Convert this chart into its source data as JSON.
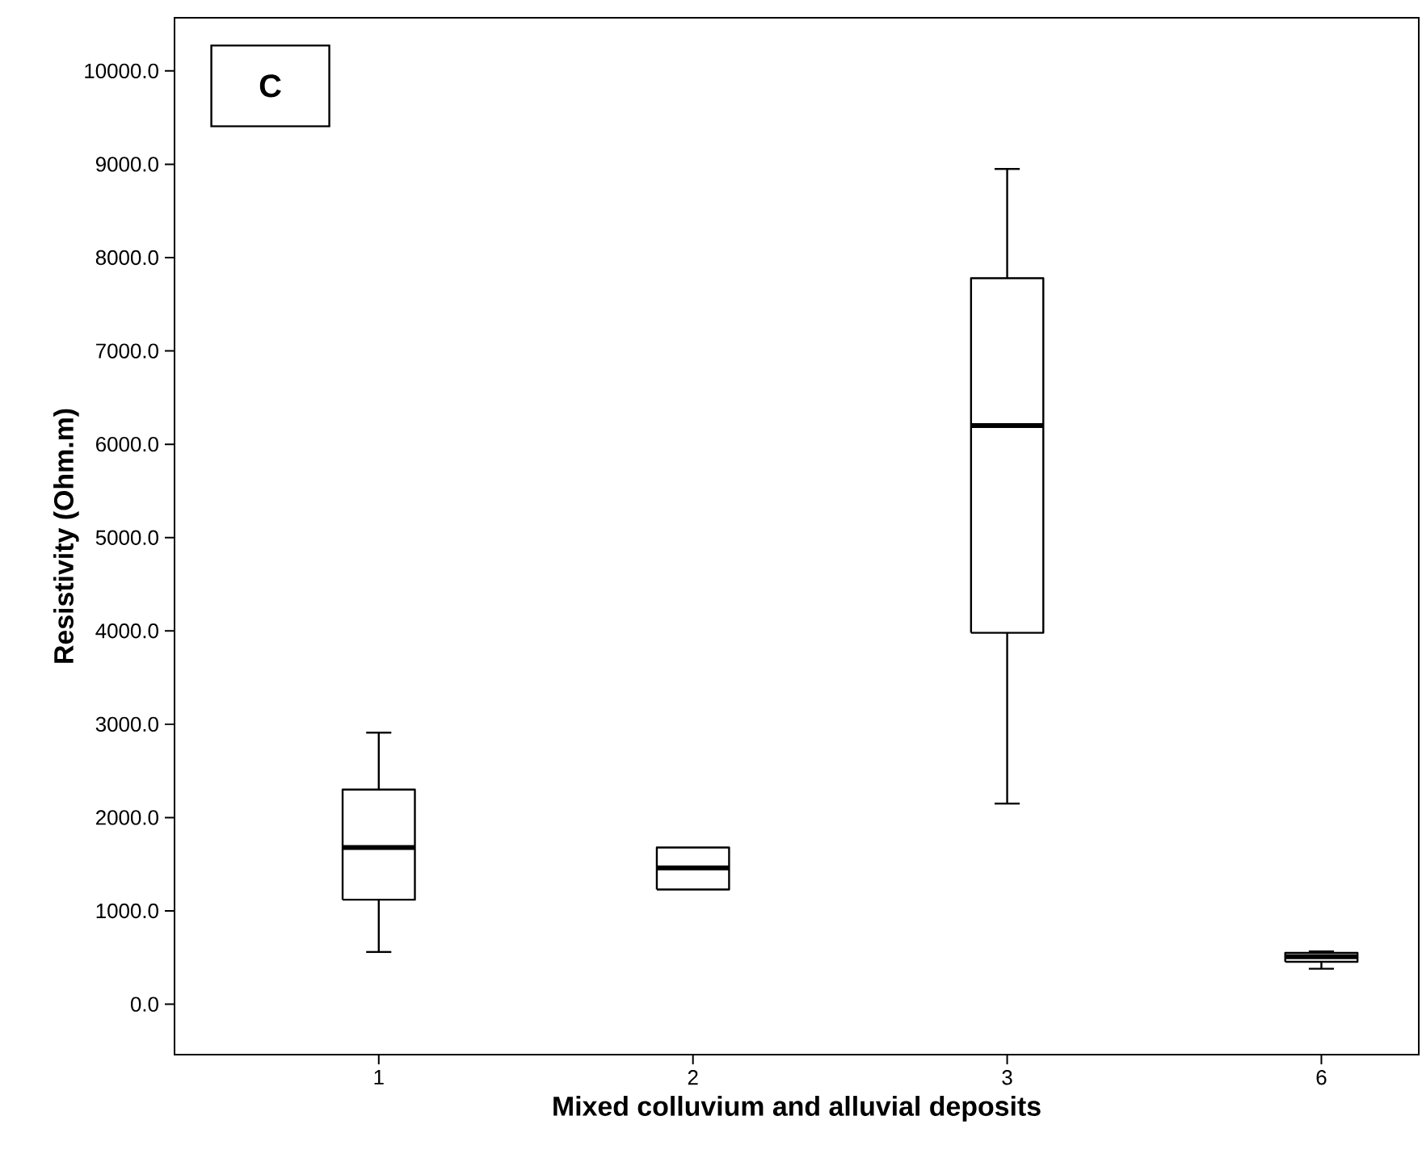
{
  "chart_data": {
    "type": "box",
    "title": "C",
    "xlabel": "Mixed colluvium and alluvial deposits",
    "ylabel": "Resistivity (Ohm.m)",
    "categories": [
      "1",
      "2",
      "3",
      "6"
    ],
    "boxes": [
      {
        "low": 560,
        "q1": 1120,
        "median": 1680,
        "q3": 2300,
        "high": 2910
      },
      {
        "low": 1230,
        "q1": 1230,
        "median": 1460,
        "q3": 1680,
        "high": 1680
      },
      {
        "low": 2150,
        "q1": 3980,
        "median": 6200,
        "q3": 7780,
        "high": 8950
      },
      {
        "low": 380,
        "q1": 455,
        "median": 510,
        "q3": 550,
        "high": 565
      }
    ],
    "ylim": [
      -540,
      10570
    ],
    "yticks": [
      {
        "value": 0,
        "label": "0.0"
      },
      {
        "value": 1000,
        "label": "1000.0"
      },
      {
        "value": 2000,
        "label": "2000.0"
      },
      {
        "value": 3000,
        "label": "3000.0"
      },
      {
        "value": 4000,
        "label": "4000.0"
      },
      {
        "value": 5000,
        "label": "5000.0"
      },
      {
        "value": 6000,
        "label": "6000.0"
      },
      {
        "value": 7000,
        "label": "7000.0"
      },
      {
        "value": 8000,
        "label": "8000.0"
      },
      {
        "value": 9000,
        "label": "9000.0"
      },
      {
        "value": 10000,
        "label": "10000.0"
      }
    ],
    "grid": false
  }
}
